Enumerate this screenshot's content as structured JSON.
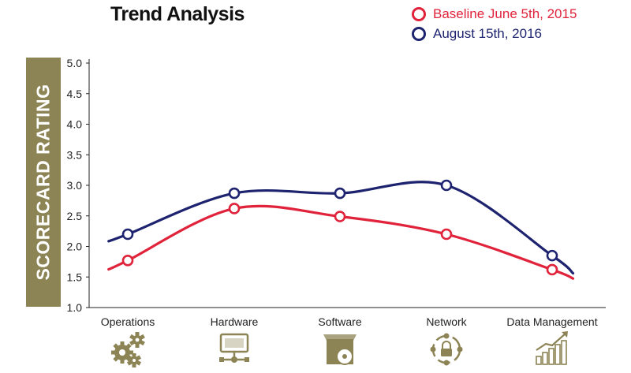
{
  "chart_data": {
    "type": "line",
    "title": "Trend Analysis",
    "ylabel": "SCORECARD RATING",
    "xlabel": "",
    "ylim": [
      1.0,
      5.0
    ],
    "y_ticks": [
      "1.0",
      "1.5",
      "2.0",
      "2.5",
      "3.0",
      "3.5",
      "4.0",
      "4.5",
      "5.0"
    ],
    "categories": [
      "Operations",
      "Hardware",
      "Software",
      "Network",
      "Data Management"
    ],
    "series": [
      {
        "name": "Baseline June 5th, 2015",
        "color": "#e0233b",
        "values": [
          1.77,
          2.62,
          2.49,
          2.2,
          1.62
        ]
      },
      {
        "name": "August 15th, 2016",
        "color": "#1e2370",
        "values": [
          2.2,
          2.87,
          2.87,
          3.0,
          1.85
        ]
      }
    ],
    "grid": false,
    "legend_position": "top-right",
    "category_icons": [
      "gears-icon",
      "computer-network-icon",
      "software-box-icon",
      "network-lock-icon",
      "growth-chart-icon"
    ],
    "icon_color": "#8c8455"
  }
}
